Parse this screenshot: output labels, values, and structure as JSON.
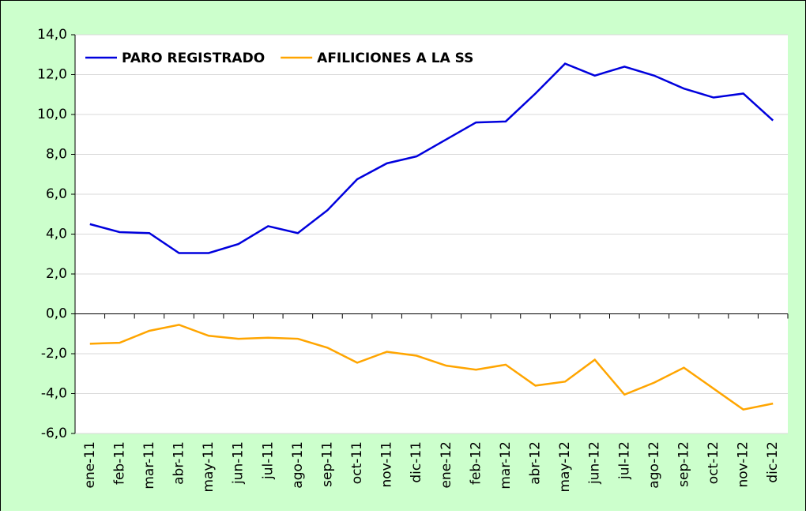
{
  "chart_data": {
    "type": "line",
    "categories": [
      "ene-11",
      "feb-11",
      "mar-11",
      "abr-11",
      "may-11",
      "jun-11",
      "jul-11",
      "ago-11",
      "sep-11",
      "oct-11",
      "nov-11",
      "dic-11",
      "ene-12",
      "feb-12",
      "mar-12",
      "abr-12",
      "may-12",
      "jun-12",
      "jul-12",
      "ago-12",
      "sep-12",
      "oct-12",
      "nov-12",
      "dic-12"
    ],
    "series": [
      {
        "name": "PARO REGISTRADO",
        "color": "#0000dd",
        "values": [
          4.5,
          4.1,
          4.05,
          3.05,
          3.05,
          3.5,
          4.4,
          4.05,
          5.2,
          6.75,
          7.55,
          7.9,
          8.75,
          9.6,
          9.65,
          11.05,
          12.55,
          11.95,
          12.4,
          11.95,
          11.3,
          10.85,
          11.05,
          9.7
        ]
      },
      {
        "name": "AFILICIONES A LA SS",
        "color": "#ffa500",
        "values": [
          -1.5,
          -1.45,
          -0.85,
          -0.55,
          -1.1,
          -1.25,
          -1.2,
          -1.25,
          -1.7,
          -2.45,
          -1.9,
          -2.1,
          -2.6,
          -2.8,
          -2.55,
          -3.6,
          -3.4,
          -2.3,
          -4.05,
          -3.45,
          -2.7,
          -3.75,
          -4.8,
          -4.5
        ]
      }
    ],
    "ylim": [
      -6,
      14
    ],
    "yticks": [
      {
        "value": -6,
        "label": "-6,0"
      },
      {
        "value": -4,
        "label": "-4,0"
      },
      {
        "value": -2,
        "label": "-2,0"
      },
      {
        "value": 0,
        "label": "0,0"
      },
      {
        "value": 2,
        "label": "2,0"
      },
      {
        "value": 4,
        "label": "4,0"
      },
      {
        "value": 6,
        "label": "6,0"
      },
      {
        "value": 8,
        "label": "8,0"
      },
      {
        "value": 10,
        "label": "10,0"
      },
      {
        "value": 12,
        "label": "12,0"
      },
      {
        "value": 14,
        "label": "14,0"
      }
    ],
    "grid": true
  }
}
